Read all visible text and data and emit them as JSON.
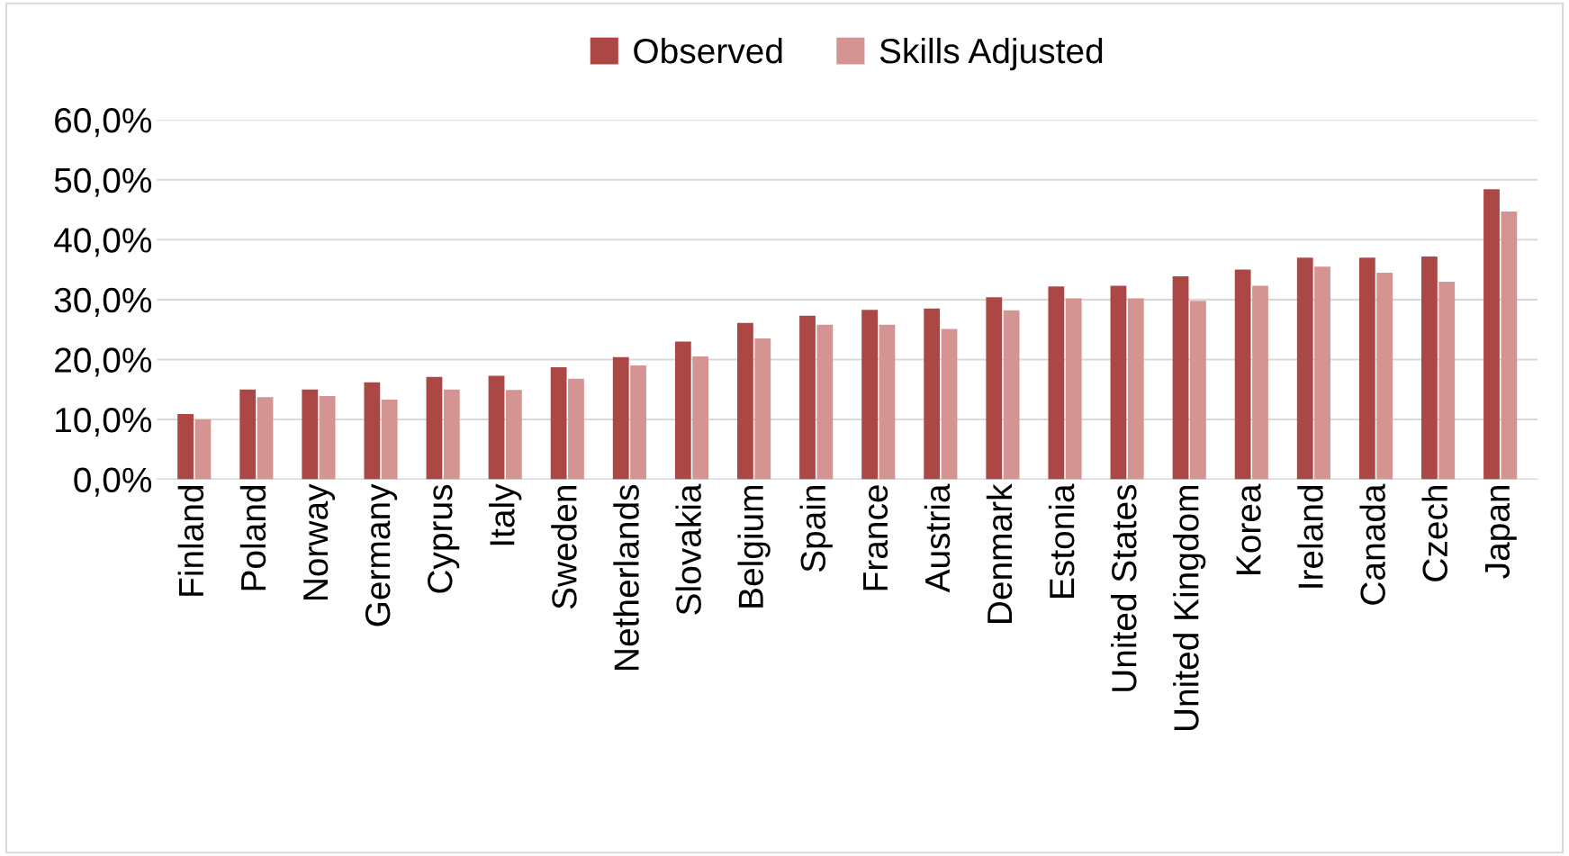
{
  "chart_data": {
    "type": "bar",
    "categories": [
      "Finland",
      "Poland",
      "Norway",
      "Germany",
      "Cyprus",
      "Italy",
      "Sweden",
      "Netherlands",
      "Slovakia",
      "Belgium",
      "Spain",
      "France",
      "Austria",
      "Denmark",
      "Estonia",
      "United States",
      "United Kingdom",
      "Korea",
      "Ireland",
      "Canada",
      "Czech",
      "Japan"
    ],
    "series": [
      {
        "name": "Observed",
        "color": "#ab4744",
        "values": [
          10.9,
          15.0,
          15.0,
          16.2,
          17.1,
          17.3,
          18.7,
          20.4,
          23.0,
          26.1,
          27.3,
          28.3,
          28.5,
          30.4,
          32.2,
          32.3,
          33.9,
          35.0,
          37.0,
          37.0,
          37.2,
          48.4
        ]
      },
      {
        "name": "Skills Adjusted",
        "color": "#d49492",
        "values": [
          10.0,
          13.7,
          13.9,
          13.3,
          15.0,
          14.9,
          16.8,
          19.0,
          20.5,
          23.5,
          25.8,
          25.8,
          25.1,
          28.2,
          30.2,
          30.2,
          29.8,
          32.3,
          35.5,
          34.5,
          33.0,
          44.7
        ]
      }
    ],
    "ylim": [
      0,
      60
    ],
    "yticks": [
      {
        "value": 0,
        "label": "0,0%"
      },
      {
        "value": 10,
        "label": "10,0%"
      },
      {
        "value": 20,
        "label": "20,0%"
      },
      {
        "value": 30,
        "label": "30,0%"
      },
      {
        "value": 40,
        "label": "40,0%"
      },
      {
        "value": 50,
        "label": "50,0%"
      },
      {
        "value": 60,
        "label": "60,0%"
      }
    ],
    "grid": "y",
    "legend": "top"
  }
}
